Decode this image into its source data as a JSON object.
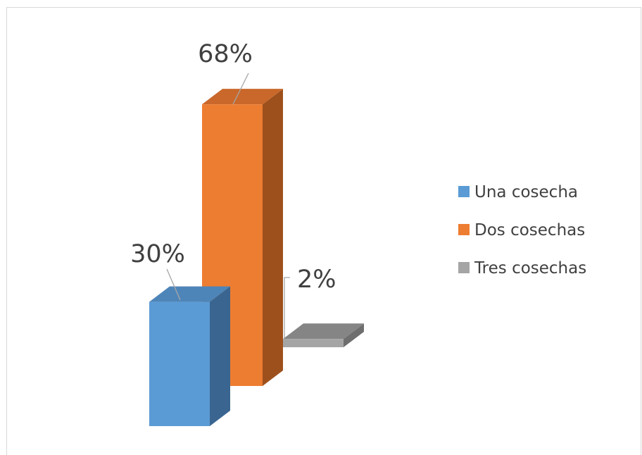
{
  "chart_data": {
    "type": "bar",
    "style": "3d-column",
    "categories": [
      "Una cosecha",
      "Dos cosechas",
      "Tres cosechas"
    ],
    "values": [
      30,
      68,
      2
    ],
    "value_suffix": "%",
    "colors": {
      "Una cosecha": {
        "front": "#5b9bd5",
        "side": "#3a6590",
        "top": "#4e85b8"
      },
      "Dos cosechas": {
        "front": "#ed7d31",
        "side": "#9e501c",
        "top": "#c9682a"
      },
      "Tres cosechas": {
        "front": "#a5a5a5",
        "side": "#6e6e6e",
        "top": "#858585"
      }
    },
    "legend": {
      "position": "right",
      "entries": [
        "Una cosecha",
        "Dos cosechas",
        "Tres cosechas"
      ]
    },
    "data_labels": [
      "30%",
      "68%",
      "2%"
    ],
    "grid": false,
    "axes_visible": false,
    "title": "",
    "xlabel": "",
    "ylabel": ""
  }
}
